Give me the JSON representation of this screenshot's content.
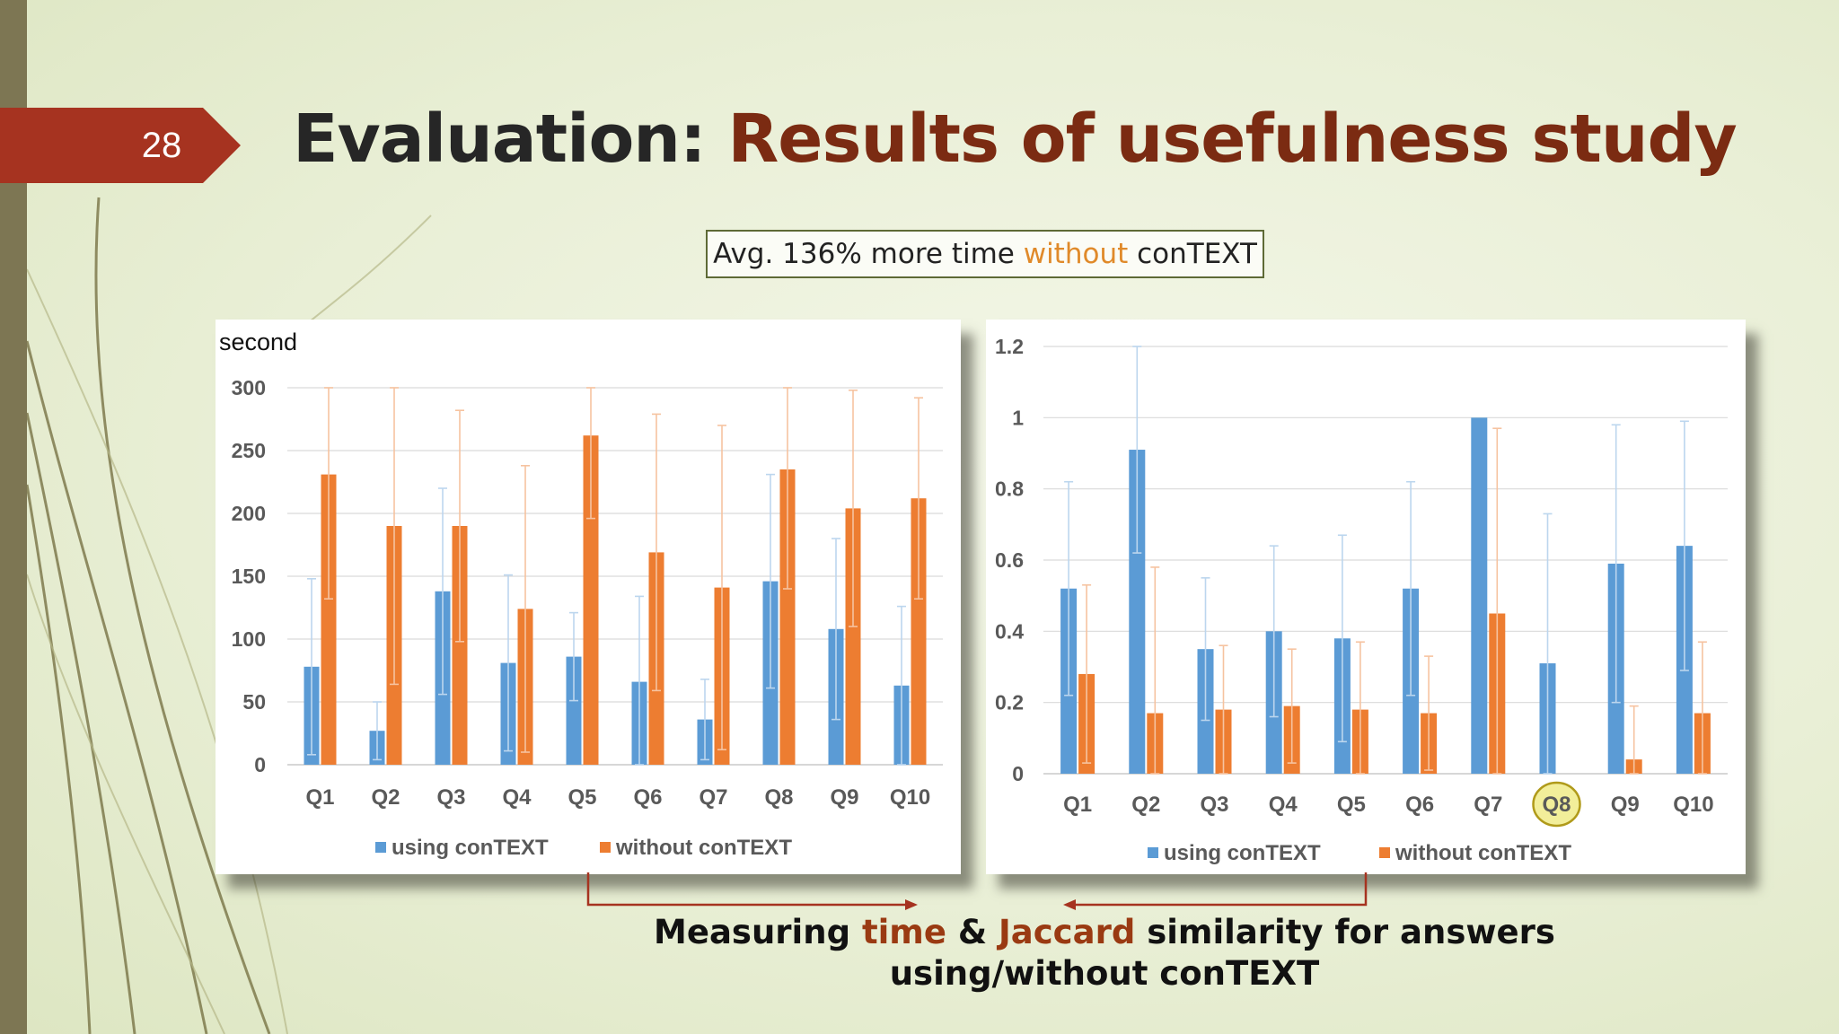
{
  "slide": {
    "number": "28",
    "title_prefix": "Evaluation: ",
    "title_highlight": "Results of usefulness study",
    "callout": {
      "before": "Avg. 136% more time ",
      "highlight": "without",
      "after": " conTEXT"
    },
    "note_line1": {
      "before": "Measuring ",
      "h1": "time",
      "mid": " & ",
      "h2": "Jaccard",
      "after": " similarity for answers"
    },
    "note_line2": "using/without conTEXT"
  },
  "colors": {
    "blue": "#5b9bd5",
    "orange": "#ed7d31",
    "accent_bar": "#a63320",
    "highlight_circle": "#f2ee9a",
    "highlight_ring": "#b09a1a"
  },
  "chart_data": [
    {
      "type": "bar",
      "title": "",
      "ylabel": "second",
      "xlabel": "",
      "ylim": [
        0,
        300
      ],
      "yticks": [
        "0",
        "50",
        "100",
        "150",
        "200",
        "250",
        "300"
      ],
      "categories": [
        "Q1",
        "Q2",
        "Q3",
        "Q4",
        "Q5",
        "Q6",
        "Q7",
        "Q8",
        "Q9",
        "Q10"
      ],
      "grid": true,
      "legend": "bottom",
      "series": [
        {
          "name": "using conTEXT",
          "values": [
            78,
            27,
            138,
            81,
            86,
            66,
            36,
            146,
            108,
            63
          ],
          "err": [
            70,
            23,
            82,
            70,
            35,
            68,
            32,
            85,
            72,
            63
          ]
        },
        {
          "name": "without conTEXT",
          "values": [
            231,
            190,
            190,
            124,
            262,
            169,
            141,
            235,
            204,
            212
          ],
          "err": [
            99,
            126,
            92,
            114,
            66,
            110,
            129,
            95,
            94,
            80
          ]
        }
      ]
    },
    {
      "type": "bar",
      "title": "",
      "ylabel": "",
      "xlabel": "",
      "ylim": [
        0,
        1.2
      ],
      "yticks": [
        "0",
        "0.2",
        "0.4",
        "0.6",
        "0.8",
        "1",
        "1.2"
      ],
      "categories": [
        "Q1",
        "Q2",
        "Q3",
        "Q4",
        "Q5",
        "Q6",
        "Q7",
        "Q8",
        "Q9",
        "Q10"
      ],
      "highlighted_category": "Q8",
      "grid": true,
      "legend": "bottom",
      "series": [
        {
          "name": "using conTEXT",
          "values": [
            0.52,
            0.91,
            0.35,
            0.4,
            0.38,
            0.52,
            1.0,
            0.31,
            0.59,
            0.64
          ],
          "err": [
            0.3,
            0.29,
            0.2,
            0.24,
            0.29,
            0.3,
            0,
            0.42,
            0.39,
            0.35
          ]
        },
        {
          "name": "without conTEXT",
          "values": [
            0.28,
            0.17,
            0.18,
            0.19,
            0.18,
            0.17,
            0.45,
            0,
            0.04,
            0.17
          ],
          "err": [
            0.25,
            0.41,
            0.18,
            0.16,
            0.19,
            0.16,
            0.52,
            0,
            0.15,
            0.2
          ]
        }
      ]
    }
  ]
}
